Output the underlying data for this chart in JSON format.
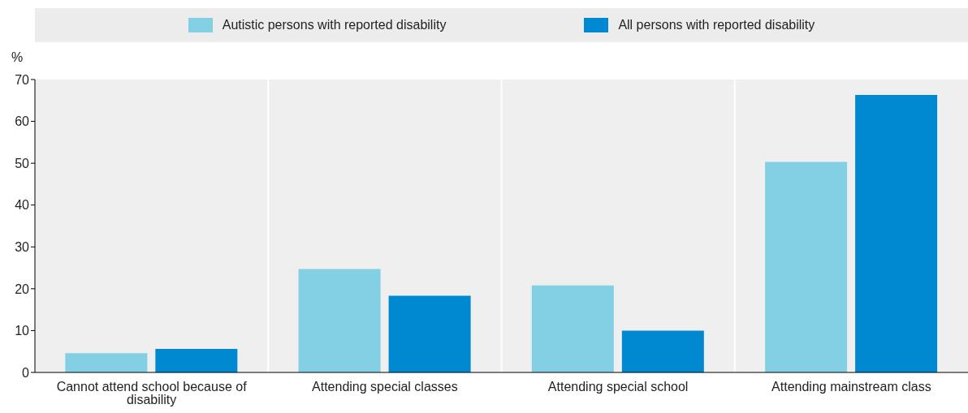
{
  "chart_data": {
    "type": "bar",
    "ylabel": "%",
    "categories": [
      "Cannot attend school because of disability",
      "Attending special classes",
      "Attending special school",
      "Attending mainstream class"
    ],
    "series": [
      {
        "name": "Autistic persons with reported disability",
        "color": "#83d0e4",
        "values": [
          4.6,
          24.7,
          20.8,
          50.3
        ]
      },
      {
        "name": "All persons with reported disability",
        "color": "#0089d0",
        "values": [
          5.6,
          18.3,
          10.0,
          66.3
        ]
      }
    ],
    "ylim": [
      0,
      70
    ],
    "yticks": [
      0,
      10,
      20,
      30,
      40,
      50,
      60,
      70
    ],
    "grid": "x",
    "legend": "top"
  }
}
